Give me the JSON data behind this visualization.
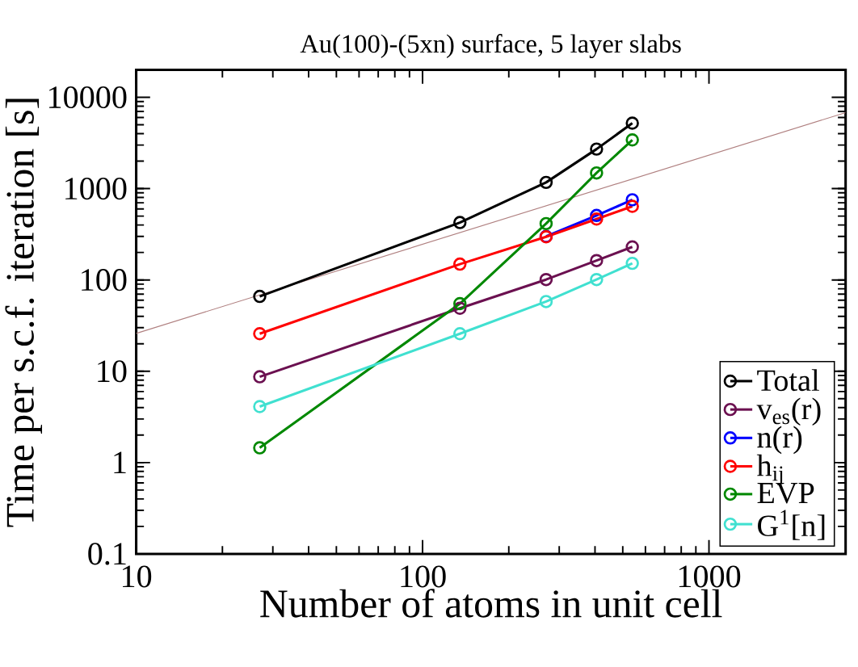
{
  "chart_data": {
    "type": "line",
    "title": "Au(100)-(5xn) surface, 5 layer slabs",
    "xlabel": "Number of atoms in unit cell",
    "ylabel": "Time per s.c.f. iteration [s]",
    "x": [
      27,
      135,
      270,
      405,
      540
    ],
    "log": "xy",
    "xlim": [
      10,
      3000
    ],
    "ylim": [
      0.1,
      20000
    ],
    "xticks": [
      10,
      100,
      1000
    ],
    "yticks": [
      0.1,
      1,
      10,
      100,
      1000,
      10000
    ],
    "marker": "circle",
    "line_style": "solid",
    "grid": false,
    "legend": "bottom right",
    "series": [
      {
        "name": "Total",
        "color": "#000000",
        "values": [
          66,
          425,
          1170,
          2710,
          5210
        ]
      },
      {
        "name": "v$_{es}$(r)",
        "color": "#6b1050",
        "values": [
          8.7,
          49,
          101,
          163,
          230
        ]
      },
      {
        "name": "n(r)",
        "color": "#0000ff",
        "values": [
          null,
          null,
          300,
          508,
          755
        ]
      },
      {
        "name": "h$_{ij}$",
        "color": "#ff0000",
        "values": [
          25.8,
          149,
          297,
          464,
          640
        ]
      },
      {
        "name": "EVP",
        "color": "#008800",
        "values": [
          1.45,
          55,
          414,
          1485,
          3415
        ]
      },
      {
        "name": "G$^{1}$[n]",
        "color": "#40e0d0",
        "values": [
          4.1,
          25.8,
          58,
          101,
          152
        ]
      },
      {
        "type": "line",
        "color": "#b08080",
        "marker": "none",
        "x": [
          10,
          3000
        ],
        "values": [
          26,
          6800
        ]
      }
    ]
  }
}
